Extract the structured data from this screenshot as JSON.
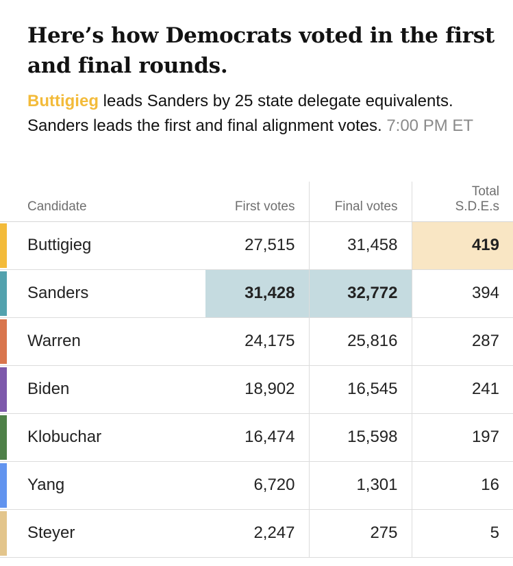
{
  "headline": "Here’s how Democrats voted in the first and final rounds.",
  "summary": {
    "leader": "Buttigieg",
    "text": " leads Sanders by 25 state delegate equivalents. Sanders leads the first and final alignment votes.",
    "timestamp": "7:00 PM ET",
    "leader_color": "#f3bb3a"
  },
  "table": {
    "columns": {
      "candidate": "Candidate",
      "first_votes": "First votes",
      "final_votes": "Final votes",
      "total_sdes_line1": "Total",
      "total_sdes_line2": "S.D.E.s"
    },
    "rows": [
      {
        "name": "Buttigieg",
        "first": "27,515",
        "final": "31,458",
        "sdes": "419",
        "color": "#f3bb3a",
        "leads": [
          "sdes"
        ]
      },
      {
        "name": "Sanders",
        "first": "31,428",
        "final": "32,772",
        "sdes": "394",
        "color": "#53a2ae",
        "leads": [
          "first",
          "final"
        ]
      },
      {
        "name": "Warren",
        "first": "24,175",
        "final": "25,816",
        "sdes": "287",
        "color": "#d9764e",
        "leads": []
      },
      {
        "name": "Biden",
        "first": "18,902",
        "final": "16,545",
        "sdes": "241",
        "color": "#7d59ab",
        "leads": []
      },
      {
        "name": "Klobuchar",
        "first": "16,474",
        "final": "15,598",
        "sdes": "197",
        "color": "#4e8048",
        "leads": []
      },
      {
        "name": "Yang",
        "first": "6,720",
        "final": "1,301",
        "sdes": "16",
        "color": "#6294ef",
        "leads": []
      },
      {
        "name": "Steyer",
        "first": "2,247",
        "final": "275",
        "sdes": "5",
        "color": "#e3c58c",
        "leads": []
      }
    ],
    "highlight_colors": {
      "sdes": "#f9e6c4",
      "votes": "#c5dbe0"
    }
  }
}
